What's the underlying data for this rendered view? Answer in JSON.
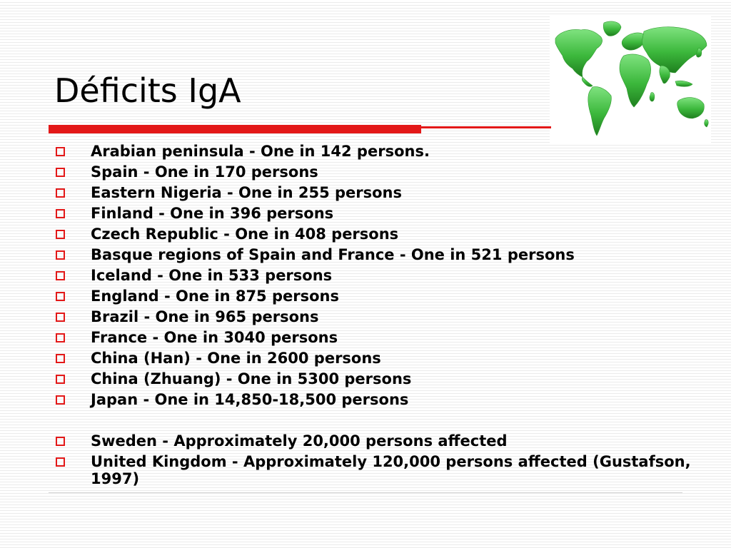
{
  "slide": {
    "title": "Déficits IgA",
    "image": {
      "icon": "world-map-icon",
      "color": "#3cb83c"
    },
    "accent_color": "#e31818",
    "bullets": [
      {
        "text": "Arabian peninsula - One in 142 persons."
      },
      {
        "text": "Spain - One in 170 persons"
      },
      {
        "text": "Eastern Nigeria - One in 255 persons"
      },
      {
        "text": "Finland - One in 396 persons"
      },
      {
        "text": "Czech Republic - One in 408 persons"
      },
      {
        "text": "Basque regions of Spain and France - One in 521 persons"
      },
      {
        "text": "Iceland - One in 533 persons"
      },
      {
        "text": "England - One in 875 persons"
      },
      {
        "text": "Brazil - One in 965 persons"
      },
      {
        "text": "France - One in 3040 persons"
      },
      {
        "text": "China (Han) - One in 2600 persons"
      },
      {
        "text": "China (Zhuang) - One in 5300 persons"
      },
      {
        "text": "Japan - One in 14,850-18,500 persons"
      },
      {
        "text": "Sweden - Approximately 20,000 persons affected"
      },
      {
        "text": "United Kingdom - Approximately 120,000 persons affected (Gustafson, 1997)"
      }
    ]
  }
}
